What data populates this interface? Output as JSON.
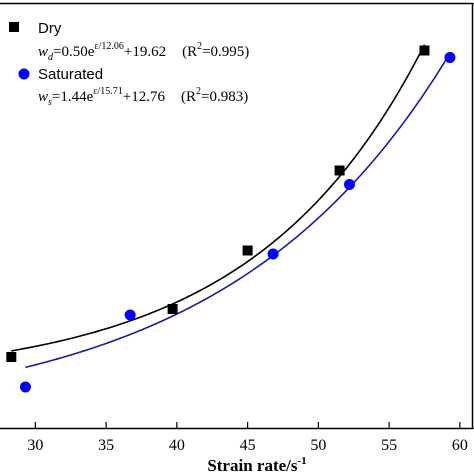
{
  "chart_data": {
    "type": "scatter",
    "xlabel": "Strain rate/s",
    "xlabel_sup": "-1",
    "xlim": [
      27.5,
      61
    ],
    "ylim": [
      0.15,
      1.0
    ],
    "xticks": [
      30,
      35,
      40,
      45,
      50,
      55,
      60
    ],
    "grid": false,
    "legend_position": "top-left",
    "series": [
      {
        "name": "Dry",
        "marker": "square",
        "color": "#000000",
        "points": [
          {
            "x": 28.3,
            "y": 0.292
          },
          {
            "x": 39.7,
            "y": 0.388
          },
          {
            "x": 45.0,
            "y": 0.505
          },
          {
            "x": 51.5,
            "y": 0.665
          },
          {
            "x": 57.5,
            "y": 0.905
          }
        ],
        "fit": {
          "a": 0.5,
          "b": 12.06,
          "c": 19.62,
          "r2": 0.995,
          "color": "#000000"
        }
      },
      {
        "name": "Saturated",
        "marker": "circle",
        "color": "#0000ff",
        "points": [
          {
            "x": 29.3,
            "y": 0.232
          },
          {
            "x": 36.7,
            "y": 0.376
          },
          {
            "x": 46.8,
            "y": 0.498
          },
          {
            "x": 52.2,
            "y": 0.637
          },
          {
            "x": 59.3,
            "y": 0.891
          }
        ],
        "fit": {
          "a": 1.44,
          "b": 15.71,
          "c": 12.76,
          "r2": 0.983,
          "color": "#1a1aa6"
        }
      }
    ]
  },
  "legend": {
    "dry_label": "Dry",
    "dry_eq_var": "w",
    "dry_eq_sub": "d",
    "dry_eq_mid": "=0.50e",
    "dry_eq_exp": "ε/12.06",
    "dry_eq_end": "+19.62",
    "dry_r2_open": "(R",
    "dry_r2_sup": "2",
    "dry_r2_close": "=0.995)",
    "sat_label": "Saturated",
    "sat_eq_var": "w",
    "sat_eq_sub": "s",
    "sat_eq_mid": "=1.44e",
    "sat_eq_exp": "ε/15.71",
    "sat_eq_end": "+12.76",
    "sat_r2_open": "(R",
    "sat_r2_sup": "2",
    "sat_r2_close": "=0.983)"
  }
}
